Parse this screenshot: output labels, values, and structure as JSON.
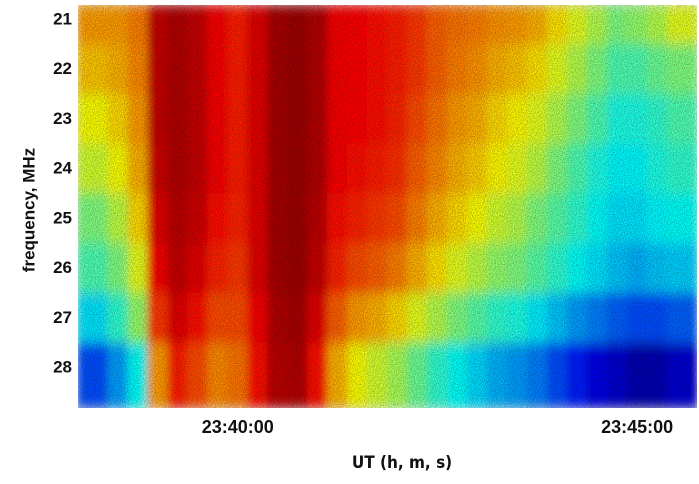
{
  "chart_data": {
    "type": "heatmap",
    "xlabel": "UT (h, m, s)",
    "ylabel": "frequency, MHz",
    "colormap": "jet",
    "xlim": [
      38,
      45.75
    ],
    "xticks": [
      {
        "value": 40,
        "label": "23:40:00"
      },
      {
        "value": 45,
        "label": "23:45:00"
      }
    ],
    "ylim": [
      28.8,
      20.7
    ],
    "yticks": [
      21,
      22,
      23,
      24,
      25,
      26,
      27,
      28
    ],
    "x": [
      38.25,
      38.5,
      38.75,
      39.0,
      39.25,
      39.5,
      39.75,
      40.0,
      40.25,
      40.5,
      40.75,
      41.0,
      41.25,
      41.5,
      41.75,
      42.0,
      42.25,
      42.5,
      42.75,
      43.0,
      43.25,
      43.5,
      43.75,
      44.0,
      44.25,
      44.5,
      44.75,
      45.0,
      45.25,
      45.5
    ],
    "y": [
      21,
      22,
      23,
      24,
      25,
      26,
      27,
      28
    ],
    "z": [
      [
        0.72,
        0.72,
        0.75,
        0.93,
        0.95,
        0.93,
        0.88,
        0.85,
        0.9,
        0.96,
        0.97,
        0.95,
        0.88,
        0.87,
        0.86,
        0.85,
        0.82,
        0.78,
        0.76,
        0.75,
        0.73,
        0.72,
        0.7,
        0.65,
        0.6,
        0.55,
        0.5,
        0.52,
        0.55,
        0.6
      ],
      [
        0.68,
        0.7,
        0.74,
        0.93,
        0.95,
        0.93,
        0.88,
        0.85,
        0.9,
        0.96,
        0.97,
        0.95,
        0.88,
        0.87,
        0.86,
        0.85,
        0.82,
        0.78,
        0.75,
        0.73,
        0.7,
        0.68,
        0.65,
        0.6,
        0.55,
        0.5,
        0.45,
        0.45,
        0.48,
        0.5
      ],
      [
        0.62,
        0.66,
        0.72,
        0.93,
        0.95,
        0.93,
        0.88,
        0.85,
        0.9,
        0.96,
        0.97,
        0.95,
        0.88,
        0.87,
        0.86,
        0.84,
        0.8,
        0.76,
        0.72,
        0.7,
        0.66,
        0.63,
        0.6,
        0.55,
        0.5,
        0.45,
        0.4,
        0.4,
        0.42,
        0.45
      ],
      [
        0.58,
        0.62,
        0.7,
        0.92,
        0.95,
        0.93,
        0.88,
        0.85,
        0.9,
        0.96,
        0.97,
        0.95,
        0.88,
        0.86,
        0.85,
        0.83,
        0.78,
        0.74,
        0.7,
        0.67,
        0.63,
        0.6,
        0.56,
        0.5,
        0.45,
        0.4,
        0.37,
        0.37,
        0.4,
        0.42
      ],
      [
        0.5,
        0.56,
        0.66,
        0.9,
        0.94,
        0.92,
        0.86,
        0.84,
        0.9,
        0.96,
        0.97,
        0.94,
        0.86,
        0.84,
        0.82,
        0.8,
        0.75,
        0.7,
        0.66,
        0.62,
        0.58,
        0.55,
        0.5,
        0.46,
        0.42,
        0.38,
        0.35,
        0.35,
        0.37,
        0.38
      ],
      [
        0.45,
        0.5,
        0.6,
        0.88,
        0.93,
        0.9,
        0.84,
        0.82,
        0.9,
        0.96,
        0.97,
        0.93,
        0.84,
        0.8,
        0.78,
        0.75,
        0.7,
        0.65,
        0.6,
        0.56,
        0.52,
        0.5,
        0.46,
        0.42,
        0.38,
        0.35,
        0.32,
        0.3,
        0.32,
        0.33
      ],
      [
        0.35,
        0.42,
        0.52,
        0.82,
        0.9,
        0.86,
        0.8,
        0.8,
        0.88,
        0.95,
        0.96,
        0.9,
        0.78,
        0.72,
        0.7,
        0.66,
        0.6,
        0.55,
        0.5,
        0.46,
        0.42,
        0.4,
        0.36,
        0.32,
        0.28,
        0.25,
        0.22,
        0.2,
        0.2,
        0.22
      ],
      [
        0.2,
        0.28,
        0.38,
        0.72,
        0.85,
        0.8,
        0.74,
        0.76,
        0.86,
        0.94,
        0.95,
        0.86,
        0.7,
        0.62,
        0.58,
        0.54,
        0.48,
        0.42,
        0.38,
        0.34,
        0.3,
        0.28,
        0.25,
        0.2,
        0.15,
        0.1,
        0.08,
        0.05,
        0.05,
        0.08
      ]
    ]
  }
}
